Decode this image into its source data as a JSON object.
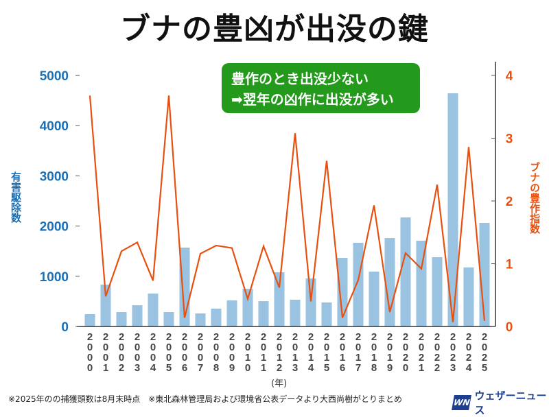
{
  "title": "ブナの豊凶が出没の鍵",
  "callout": {
    "line1": "豊作のとき出没少ない",
    "line2": "➡翌年の凶作に出没が多い"
  },
  "footnote": "※2025年のの捕獲頭数は8月末時点　※東北森林管理局および環境省公表データより大西尚樹がとりまとめ",
  "logo": {
    "mark": "WN",
    "name": "ウェザーニュース"
  },
  "colors": {
    "bar": "#9ac3e2",
    "line": "#e8500f",
    "left_axis": "#1a6fb5",
    "right_axis": "#e8500f",
    "callout": "#239a1c"
  },
  "chart_data": {
    "type": "bar+line",
    "title": "ブナの豊凶が出没の鍵",
    "xlabel": "(年)",
    "categories": [
      "2000",
      "2001",
      "2002",
      "2003",
      "2004",
      "2005",
      "2006",
      "2007",
      "2008",
      "2009",
      "2010",
      "2011",
      "2012",
      "2013",
      "2014",
      "2015",
      "2016",
      "2017",
      "2018",
      "2019",
      "2020",
      "2021",
      "2022",
      "2023",
      "2024",
      "2025"
    ],
    "series": [
      {
        "name": "有害駆除数",
        "type": "bar",
        "axis": "left",
        "values": [
          246,
          833,
          287,
          423,
          656,
          287,
          1571,
          260,
          355,
          519,
          751,
          505,
          1079,
          533,
          956,
          478,
          1366,
          1667,
          1093,
          1762,
          2172,
          1708,
          1380,
          4645,
          1175,
          2063
        ]
      },
      {
        "name": "ブナの豊作指数",
        "type": "line",
        "axis": "right",
        "values": [
          3.68,
          0.48,
          1.2,
          1.34,
          0.73,
          3.68,
          0.14,
          1.16,
          1.29,
          1.25,
          0.44,
          1.28,
          0.62,
          3.08,
          0.4,
          2.64,
          0.14,
          0.74,
          1.93,
          0.23,
          1.17,
          0.92,
          2.26,
          0.07,
          2.86,
          0.09
        ]
      }
    ],
    "left_axis": {
      "label": "有害駆除数",
      "range": [
        0,
        5000
      ],
      "ticks": [
        "0",
        "1000",
        "2000",
        "3000",
        "4000",
        "5000"
      ]
    },
    "right_axis": {
      "label": "ブナの豊作指数",
      "range": [
        0,
        4
      ],
      "ticks": [
        "0",
        "1",
        "2",
        "3",
        "4"
      ]
    },
    "grid": false
  }
}
